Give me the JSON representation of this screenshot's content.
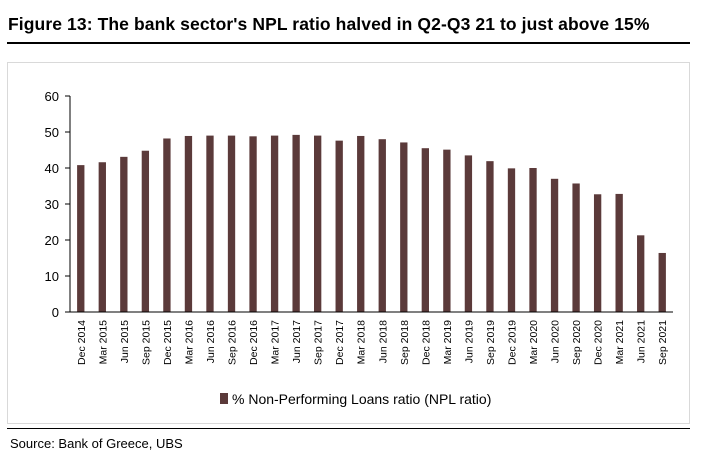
{
  "figure_title": "Figure 13: The bank sector's NPL ratio halved in Q2-Q3 21 to just above 15%",
  "source": "Source: Bank of Greece, UBS",
  "colors": {
    "bar": "#5b3a3a",
    "axis": "#000000",
    "text": "#000000"
  },
  "chart_data": {
    "type": "bar",
    "title": "",
    "xlabel": "",
    "ylabel": "",
    "ylim": [
      0,
      60
    ],
    "yticks": [
      0,
      10,
      20,
      30,
      40,
      50,
      60
    ],
    "grid": false,
    "legend_position": "bottom",
    "categories": [
      "Dec 2014",
      "Mar 2015",
      "Jun 2015",
      "Sep 2015",
      "Dec 2015",
      "Mar 2016",
      "Jun 2016",
      "Sep 2016",
      "Dec 2016",
      "Mar 2017",
      "Jun 2017",
      "Sep 2017",
      "Dec 2017",
      "Mar 2018",
      "Jun 2018",
      "Sep 2018",
      "Dec 2018",
      "Mar 2019",
      "Jun 2019",
      "Sep 2019",
      "Dec 2019",
      "Mar 2020",
      "Jun 2020",
      "Sep 2020",
      "Dec 2020",
      "Mar 2021",
      "Jun 2021",
      "Sep 2021"
    ],
    "series": [
      {
        "name": "% Non-Performing Loans ratio (NPL ratio)",
        "values": [
          40.8,
          41.6,
          43.1,
          44.8,
          48.2,
          48.9,
          49.0,
          49.0,
          48.8,
          49.0,
          49.2,
          49.0,
          47.6,
          48.9,
          48.0,
          47.1,
          45.5,
          45.1,
          43.5,
          41.9,
          39.9,
          40.0,
          37.0,
          35.7,
          32.7,
          32.8,
          21.3,
          16.4
        ]
      }
    ]
  }
}
